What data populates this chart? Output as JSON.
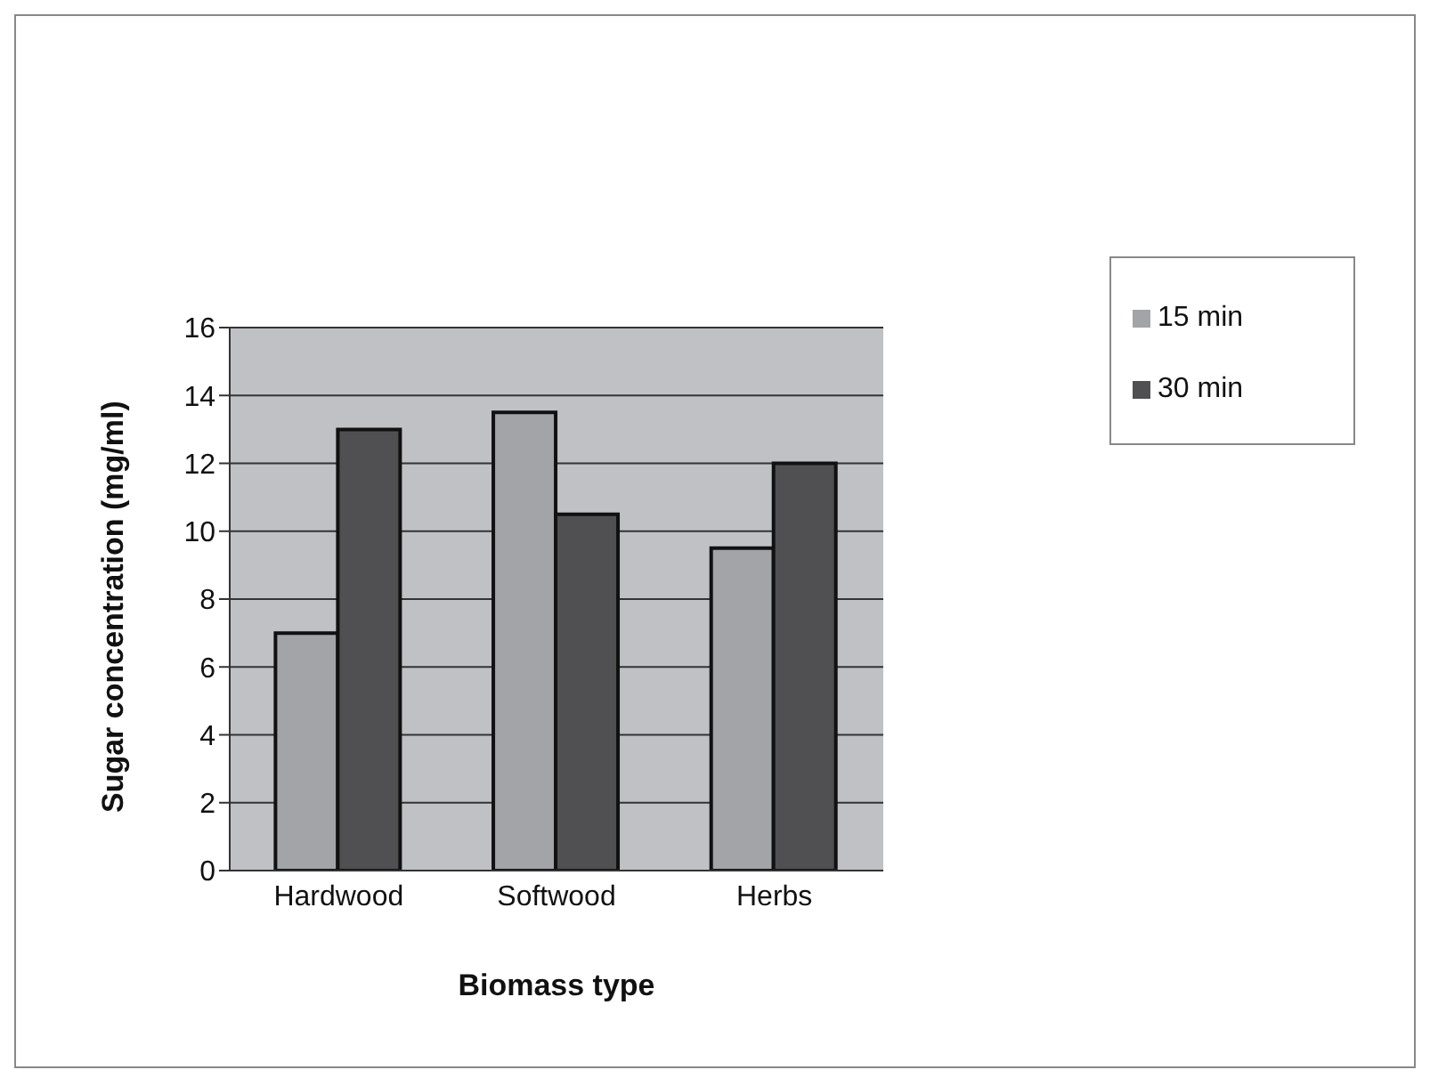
{
  "chart_data": {
    "type": "bar",
    "xlabel": "Biomass type",
    "ylabel": "Sugar concentration (mg/ml)",
    "categories": [
      "Hardwood",
      "Softwood",
      "Herbs"
    ],
    "series": [
      {
        "name": "15 min",
        "color": "#a3a4a8",
        "values": [
          7,
          13.5,
          9.5
        ]
      },
      {
        "name": "30 min",
        "color": "#505052",
        "values": [
          13,
          10.5,
          12
        ]
      }
    ],
    "ylim": [
      0,
      16
    ],
    "yticks": [
      0,
      2,
      4,
      6,
      8,
      10,
      12,
      14,
      16
    ],
    "grid": "y",
    "legend": "top right"
  }
}
